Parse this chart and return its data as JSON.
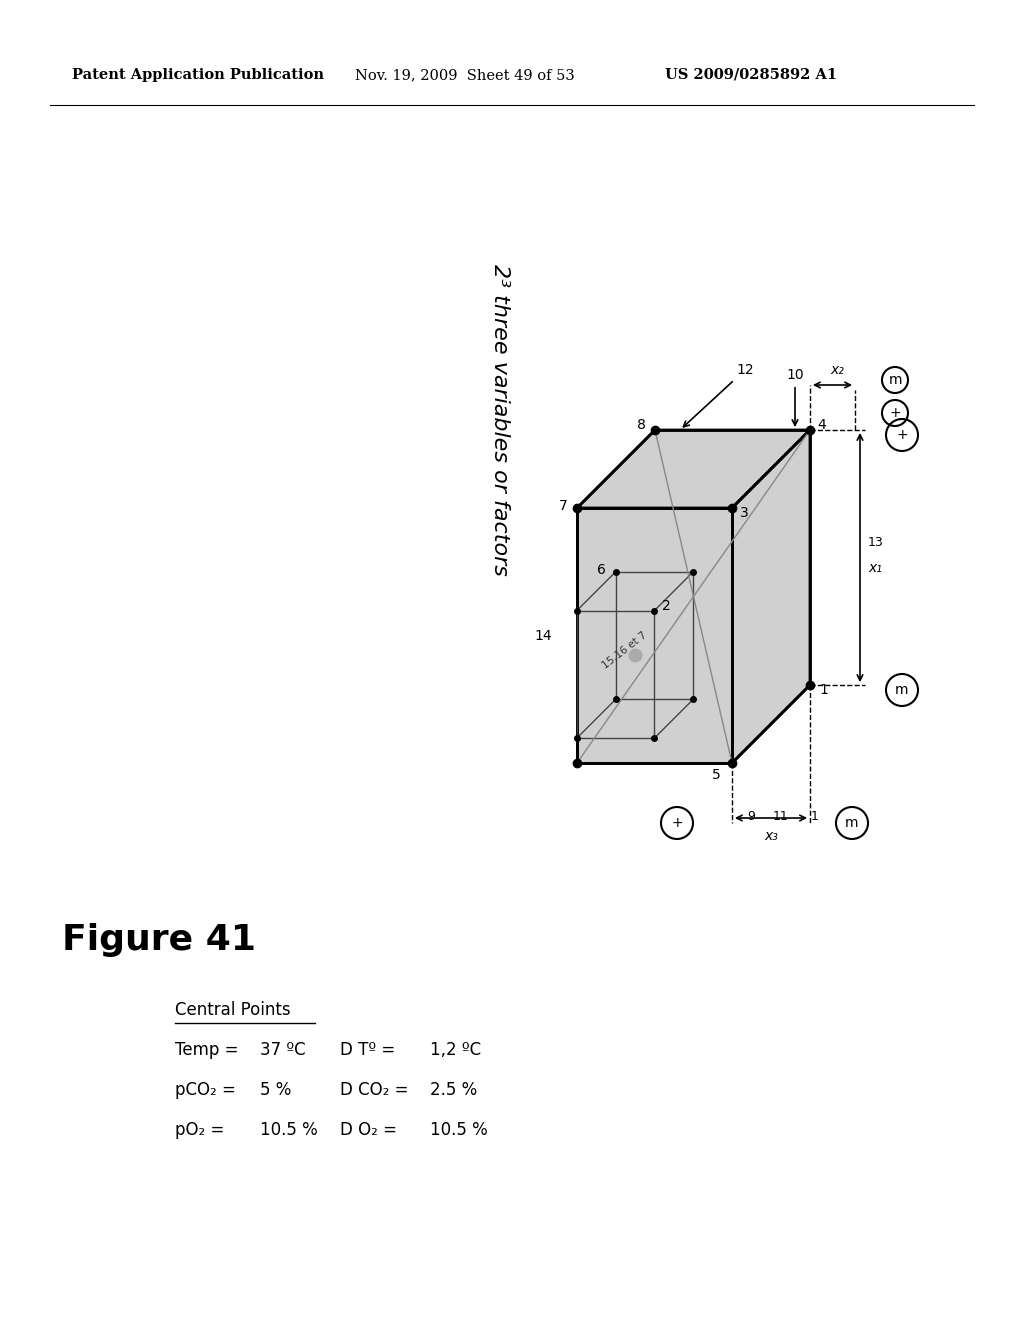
{
  "header_left": "Patent Application Publication",
  "header_mid": "Nov. 19, 2009  Sheet 49 of 53",
  "header_right": "US 2009/0285892 A1",
  "figure_title": "Figure 41",
  "title_rotated": "2³ three variables or factors",
  "central_points_label": "Central Points",
  "cp_temp_label": "Temp =",
  "cp_temp_val": "37 ºC",
  "cp_pco2_label": "pCO₂ =",
  "cp_pco2_val": "5 %",
  "cp_po2_label": "pO₂ =",
  "cp_po2_val": "10.5 %",
  "d_temp_label": "D Tº =",
  "d_temp_val": "1,2 ºC",
  "d_co2_label": "D CO₂ =",
  "d_co2_val": "2.5 %",
  "d_o2_label": "D O₂ =",
  "d_o2_val": "10.5 %",
  "bg_color": "#ffffff",
  "cube_face_color": "#d0d0d0",
  "cube_edge_color": "#000000"
}
